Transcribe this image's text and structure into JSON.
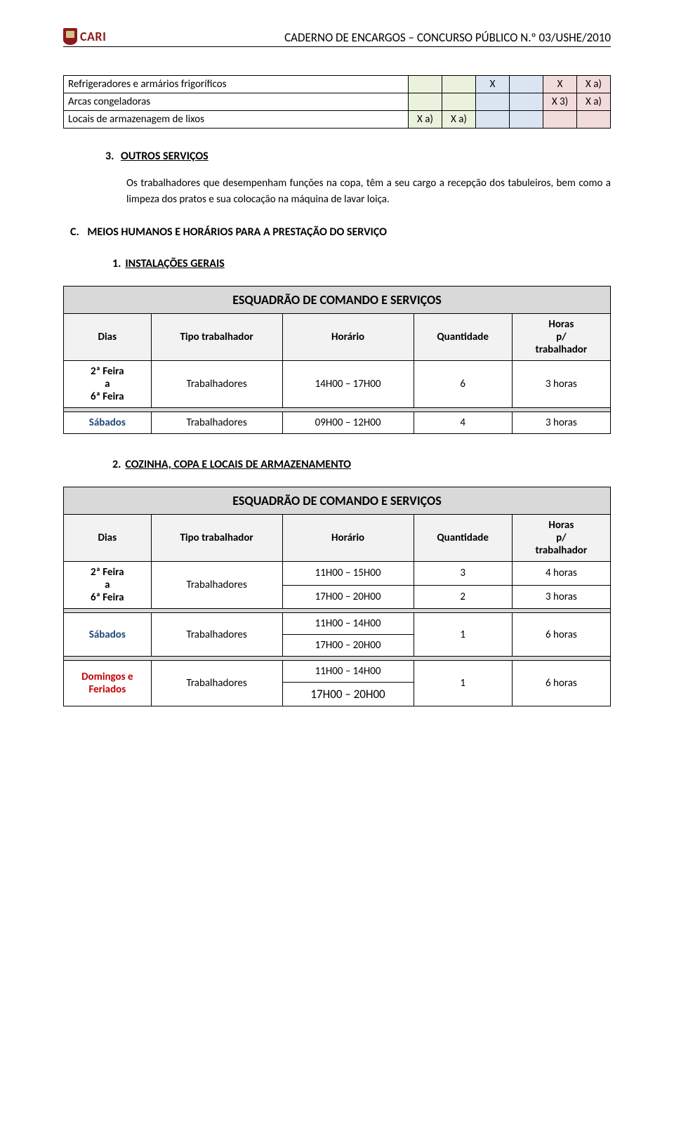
{
  "header": {
    "logo_text": "CARI",
    "title": "CADERNO DE ENCARGOS – CONCURSO PÚBLICO N.º 03/USHE/2010"
  },
  "top_table": {
    "rows": [
      {
        "label": "Refrigeradores e armários frigoríficos",
        "c1": "",
        "c2": "",
        "c3": "X",
        "c4": "",
        "c5": "X",
        "c6": "X a)"
      },
      {
        "label": "Arcas congeladoras",
        "c1": "",
        "c2": "",
        "c3": "",
        "c4": "",
        "c5": "X 3)",
        "c6": "X a)"
      },
      {
        "label": "Locais de armazenagem de lixos",
        "c1": "X a)",
        "c2": "X a)",
        "c3": "",
        "c4": "",
        "c5": "",
        "c6": ""
      }
    ],
    "col_bg": [
      "bg-yellow",
      "bg-yellow",
      "bg-blue",
      "bg-blue",
      "bg-pink",
      "bg-pink"
    ]
  },
  "section3": {
    "num_label": "3.",
    "title": "OUTROS SERVIÇOS",
    "body": "Os trabalhadores que desempenham funções na copa, têm a seu cargo a recepção dos tabuleiros, bem como a limpeza dos pratos e sua colocação na máquina de lavar loiça."
  },
  "sectionC": {
    "label": "C.",
    "title": "MEIOS HUMANOS E HORÁRIOS PARA A PRESTAÇÃO DO SERVIÇO"
  },
  "sub1": {
    "num": "1.",
    "title": "INSTALAÇÕES GERAIS"
  },
  "table1": {
    "title": "ESQUADRÃO DE COMANDO E SERVIÇOS",
    "headers": {
      "dias": "Dias",
      "tipo": "Tipo trabalhador",
      "horario": "Horário",
      "qtd": "Quantidade",
      "horas": "Horas\np/\ntrabalhador"
    },
    "rows": [
      {
        "dias": "2ª Feira\na\n6ª Feira",
        "tipo": "Trabalhadores",
        "horario": "14H00 – 17H00",
        "qtd": "6",
        "horas": "3 horas",
        "dias_class": "dias-cell"
      }
    ],
    "rows2": [
      {
        "dias": "Sábados",
        "tipo": "Trabalhadores",
        "horario": "09H00 – 12H00",
        "qtd": "4",
        "horas": "3 horas",
        "dias_class": "sabados"
      }
    ]
  },
  "sub2": {
    "num": "2.",
    "title": "COZINHA, COPA E LOCAIS DE ARMAZENAMENTO"
  },
  "table2": {
    "title": "ESQUADRÃO DE COMANDO E SERVIÇOS",
    "headers": {
      "dias": "Dias",
      "tipo": "Tipo trabalhador",
      "horario": "Horário",
      "qtd": "Quantidade",
      "horas": "Horas\np/\ntrabalhador"
    },
    "block_a": {
      "dias": "2ª Feira\na\n6ª Feira",
      "tipo": "Trabalhadores",
      "rows": [
        {
          "horario": "11H00 – 15H00",
          "qtd": "3",
          "horas": "4 horas"
        },
        {
          "horario": "17H00 – 20H00",
          "qtd": "2",
          "horas": "3 horas"
        }
      ]
    },
    "block_b": {
      "dias": "Sábados",
      "dias_class": "sabados",
      "tipo": "Trabalhadores",
      "hor1": "11H00 – 14H00",
      "hor2": "17H00 – 20H00",
      "qtd": "1",
      "horas": "6 horas"
    },
    "block_c": {
      "dias": "Domingos e\nFeriados",
      "dias_class": "domingos",
      "tipo": "Trabalhadores",
      "hor1": "11H00 – 14H00",
      "hor2": "17H00 – 20H00",
      "qtd": "1",
      "horas": "6 horas"
    }
  }
}
